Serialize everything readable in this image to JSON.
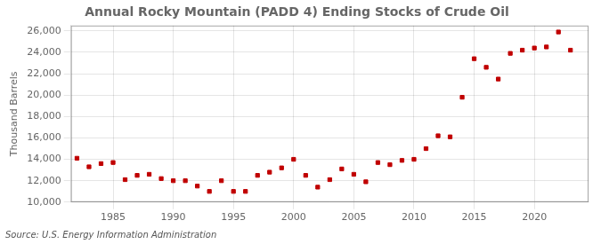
{
  "chart_data": {
    "type": "scatter",
    "title": "Annual Rocky Mountain (PADD 4) Ending Stocks of Crude Oil",
    "ylabel": "Thousand Barrels",
    "annotations": [
      "Source: U.S. Energy Information Administration"
    ],
    "x": [
      1982,
      1983,
      1984,
      1985,
      1986,
      1987,
      1988,
      1989,
      1990,
      1991,
      1992,
      1993,
      1994,
      1995,
      1996,
      1997,
      1998,
      1999,
      2000,
      2001,
      2002,
      2003,
      2004,
      2005,
      2006,
      2007,
      2008,
      2009,
      2010,
      2011,
      2012,
      2013,
      2014,
      2015,
      2016,
      2017,
      2018,
      2019,
      2020,
      2021,
      2022,
      2023
    ],
    "values": [
      14100,
      13300,
      13600,
      13700,
      12100,
      12500,
      12600,
      12200,
      12000,
      12000,
      11500,
      11000,
      12000,
      11000,
      11000,
      12500,
      12800,
      13200,
      14000,
      12500,
      11400,
      12100,
      13100,
      12600,
      11900,
      13700,
      13500,
      13900,
      14000,
      15000,
      16200,
      16100,
      19800,
      23400,
      22600,
      21500,
      23900,
      24200,
      24400,
      24500,
      25900,
      24200
    ],
    "color": "#c00000",
    "marker": "square",
    "xlim": [
      1981.5,
      2024.5
    ],
    "xticks": [
      1985,
      1990,
      1995,
      2000,
      2005,
      2010,
      2015,
      2020
    ],
    "ylim": [
      10000,
      26500
    ],
    "yticks": [
      {
        "value": 10000,
        "label": "10,000"
      },
      {
        "value": 12000,
        "label": "12,000"
      },
      {
        "value": 14000,
        "label": "14,000"
      },
      {
        "value": 16000,
        "label": "16,000"
      },
      {
        "value": 18000,
        "label": "18,000"
      },
      {
        "value": 20000,
        "label": "20,000"
      },
      {
        "value": 22000,
        "label": "22,000"
      },
      {
        "value": 24000,
        "label": "24,000"
      },
      {
        "value": 26000,
        "label": "26,000"
      }
    ],
    "grid": true
  }
}
